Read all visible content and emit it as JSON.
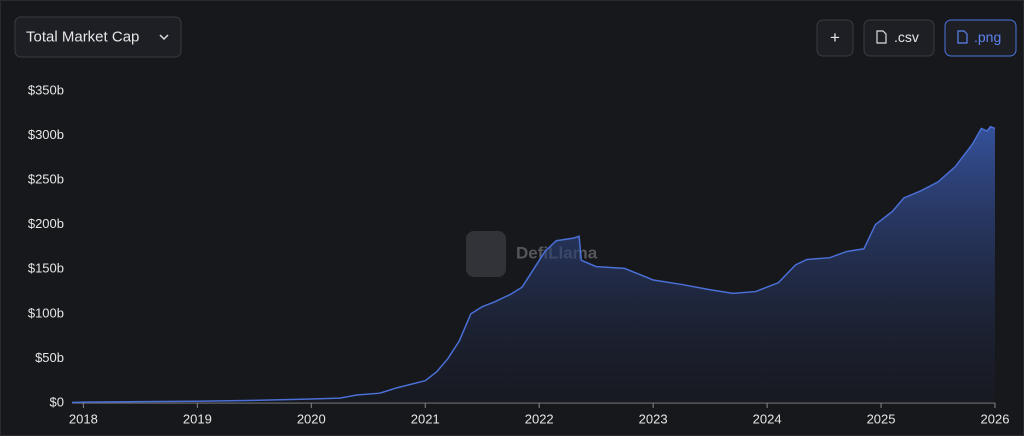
{
  "selector": "Total Market Cap",
  "buttons": [
    "+",
    ".csv",
    ".png"
  ],
  "chart_data": {
    "type": "area",
    "watermark": "DefiLlama",
    "x": [
      2017.9,
      2018.0,
      2018.5,
      2019.0,
      2019.5,
      2020.0,
      2020.25,
      2020.4,
      2020.6,
      2020.75,
      2021.0,
      2021.1,
      2021.2,
      2021.3,
      2021.4,
      2021.5,
      2021.6,
      2021.75,
      2021.85,
      2021.95,
      2022.05,
      2022.15,
      2022.3,
      2022.35,
      2022.37,
      2022.5,
      2022.75,
      2023.0,
      2023.25,
      2023.5,
      2023.7,
      2023.9,
      2024.1,
      2024.25,
      2024.35,
      2024.55,
      2024.7,
      2024.85,
      2024.95,
      2025.1,
      2025.2,
      2025.35,
      2025.5,
      2025.65,
      2025.8,
      2025.88,
      2025.93,
      2025.96,
      2026.0
    ],
    "series": [
      {
        "name": "Total Market Cap",
        "color": "#4a6fd6",
        "values": [
          0.5,
          1,
          1.5,
          2,
          3,
          4.5,
          5.5,
          9,
          11,
          17,
          25,
          35,
          50,
          70,
          100,
          108,
          113,
          122,
          130,
          150,
          170,
          182,
          185,
          187,
          160,
          153,
          151,
          138,
          133,
          127,
          123,
          125,
          135,
          155,
          161,
          163,
          170,
          173,
          200,
          215,
          230,
          238,
          248,
          265,
          290,
          308,
          305,
          310,
          308
        ]
      }
    ],
    "xlim": [
      2017.9,
      2026.0
    ],
    "xticks": [
      2018,
      2019,
      2020,
      2021,
      2022,
      2023,
      2024,
      2025,
      2026
    ],
    "ylim": [
      0,
      350
    ],
    "yticks": [
      {
        "value": 0,
        "label": "$0"
      },
      {
        "value": 50,
        "label": "$50b"
      },
      {
        "value": 100,
        "label": "$100b"
      },
      {
        "value": 150,
        "label": "$150b"
      },
      {
        "value": 200,
        "label": "$200b"
      },
      {
        "value": 250,
        "label": "$250b"
      },
      {
        "value": 300,
        "label": "$300b"
      },
      {
        "value": 350,
        "label": "$350b"
      }
    ],
    "grid": false
  }
}
